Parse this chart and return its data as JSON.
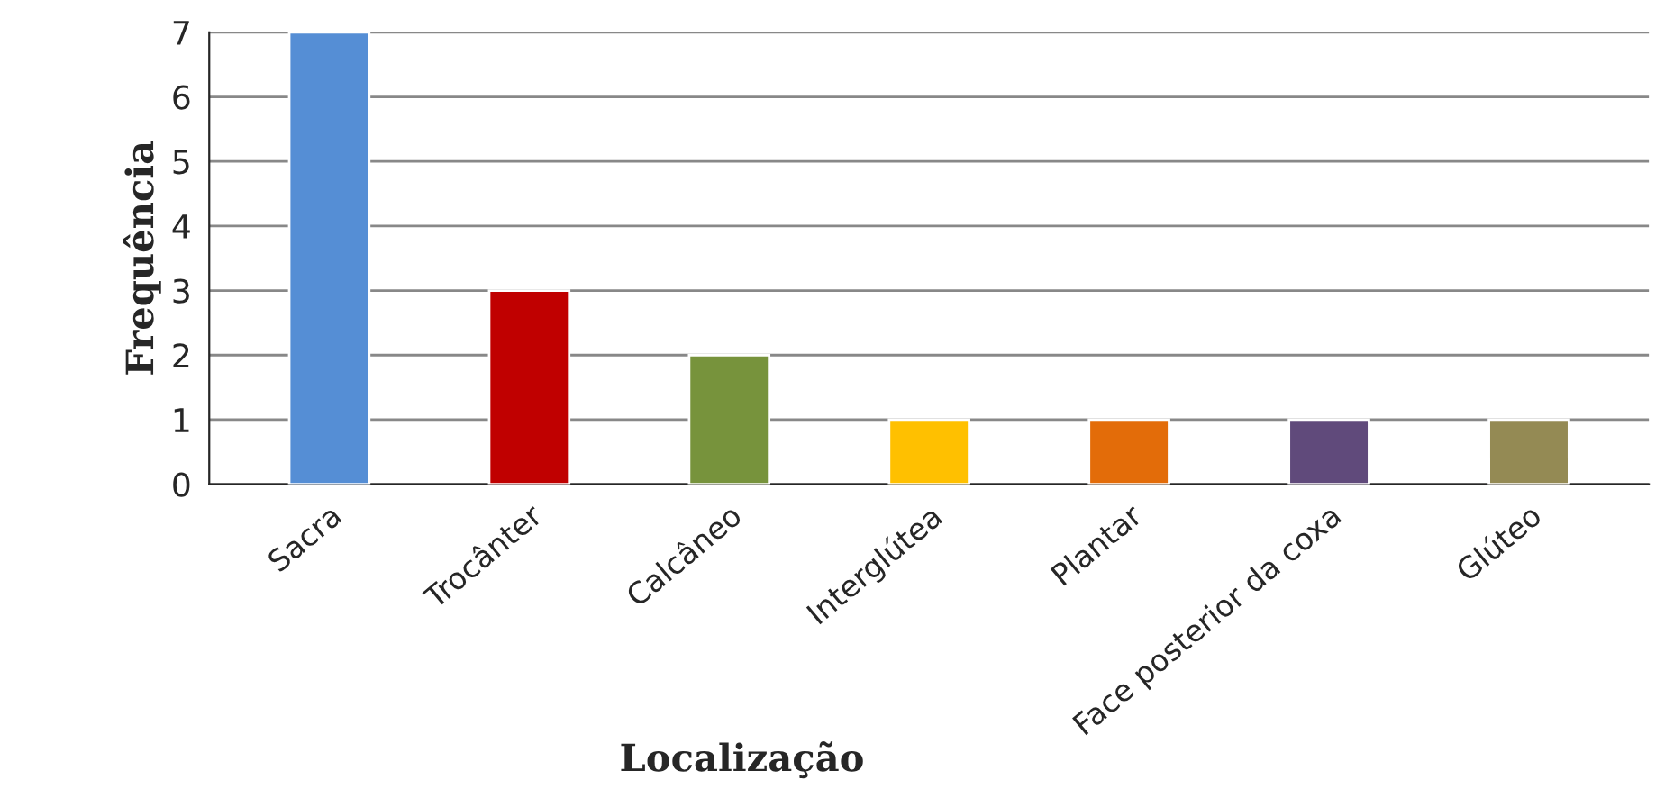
{
  "chart_data": {
    "type": "bar",
    "xlabel": "Localização",
    "ylabel": "Frequência",
    "categories": [
      "Sacra",
      "Trocânter",
      "Calcâneo",
      "Interglútea",
      "Plantar",
      "Face posterior da coxa",
      "Glúteo"
    ],
    "values": [
      7,
      3,
      2,
      1,
      1,
      1,
      1
    ],
    "colors": [
      "#558ed5",
      "#c00000",
      "#77933c",
      "#ffc000",
      "#e36c09",
      "#604a7b",
      "#948a54"
    ],
    "ylim": [
      0,
      7
    ],
    "yticks": [
      0,
      1,
      2,
      3,
      4,
      5,
      6,
      7
    ],
    "grid": "y"
  }
}
